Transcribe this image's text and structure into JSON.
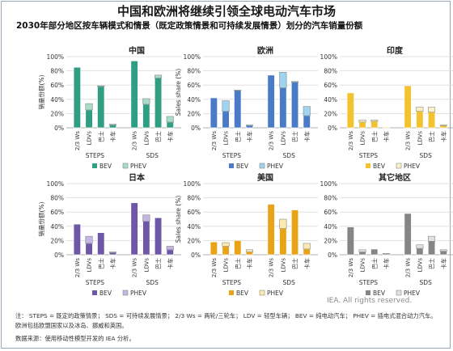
{
  "title": "中国和欧洲将继续引领全球电动汽车市场",
  "subtitle": "2030年部分地区按车辆模式和情景（既定政策情景和可持续发展情景）划分的汽车销量份额",
  "colors": {
    "grid": "#d9d9d9",
    "axis": "#999999"
  },
  "chart_data": [
    {
      "type": "bar",
      "stacked": true,
      "region": "中国",
      "ylabel": "销量份额(%)",
      "ylim": [
        0,
        100
      ],
      "yticks": [
        "0%",
        "20%",
        "40%",
        "60%",
        "80%",
        "100%"
      ],
      "scenarios": [
        "STEPS",
        "SDS"
      ],
      "categories": [
        "2/3 Ws",
        "LDVs",
        "巴士",
        "卡车"
      ],
      "series": [
        {
          "name": "BEV",
          "color": "#2f9e83",
          "steps": [
            85,
            25,
            58,
            4
          ],
          "sds": [
            94,
            33,
            70,
            8
          ]
        },
        {
          "name": "PHEV",
          "color": "#a9dcc9",
          "steps": [
            0,
            9,
            1,
            1
          ],
          "sds": [
            0,
            8,
            4,
            8
          ]
        }
      ],
      "legend": "bottom"
    },
    {
      "type": "bar",
      "stacked": true,
      "region": "欧洲",
      "ylabel": "Sales share (%)",
      "ylim": [
        0,
        100
      ],
      "yticks": [
        "0%",
        "20%",
        "40%",
        "60%",
        "80%",
        "100%"
      ],
      "scenarios": [
        "STEPS",
        "SDS"
      ],
      "categories": [
        "2/3 Ws",
        "LDVs",
        "巴士",
        "卡车"
      ],
      "series": [
        {
          "name": "BEV",
          "color": "#4a7bc6",
          "steps": [
            42,
            23,
            52,
            3
          ],
          "sds": [
            74,
            56,
            64,
            17
          ]
        },
        {
          "name": "PHEV",
          "color": "#9fd3ee",
          "steps": [
            0,
            15,
            1,
            1
          ],
          "sds": [
            0,
            22,
            1,
            13
          ]
        }
      ],
      "legend": "bottom"
    },
    {
      "type": "bar",
      "stacked": true,
      "region": "印度",
      "ylabel": "",
      "ylim": [
        0,
        100
      ],
      "yticks": [
        "0%",
        "20%",
        "40%",
        "60%",
        "80%",
        "100%"
      ],
      "scenarios": [
        "STEPS",
        "SDS"
      ],
      "categories": [
        "2/3 Ws",
        "LDVs",
        "巴士",
        "卡车"
      ],
      "series": [
        {
          "name": "BEV",
          "color": "#f2c230",
          "steps": [
            49,
            8,
            9,
            1
          ],
          "sds": [
            59,
            23,
            22,
            3
          ]
        },
        {
          "name": "PHEV",
          "color": "#fbf1c7",
          "steps": [
            0,
            3,
            2,
            0
          ],
          "sds": [
            0,
            6,
            7,
            1
          ]
        }
      ],
      "legend": "bottom"
    },
    {
      "type": "bar",
      "stacked": true,
      "region": "日本",
      "ylabel": "销量份额(%)",
      "ylim": [
        0,
        100
      ],
      "yticks": [
        "0%",
        "20%",
        "40%",
        "60%",
        "80%",
        "100%"
      ],
      "scenarios": [
        "STEPS",
        "SDS"
      ],
      "categories": [
        "2/3 Ws",
        "LDVs",
        "巴士",
        "卡车"
      ],
      "series": [
        {
          "name": "BEV",
          "color": "#6e57a6",
          "steps": [
            43,
            16,
            31,
            3
          ],
          "sds": [
            73,
            47,
            52,
            7
          ]
        },
        {
          "name": "PHEV",
          "color": "#c3b6e0",
          "steps": [
            0,
            10,
            0,
            1
          ],
          "sds": [
            0,
            9,
            0,
            5
          ]
        }
      ],
      "legend": "bottom"
    },
    {
      "type": "bar",
      "stacked": true,
      "region": "美国",
      "ylabel": "Sales share (%)",
      "ylim": [
        0,
        100
      ],
      "yticks": [
        "0%",
        "20%",
        "40%",
        "60%",
        "80%",
        "100%"
      ],
      "scenarios": [
        "STEPS",
        "SDS"
      ],
      "categories": [
        "2/3 Ws",
        "LDVs",
        "巴士",
        "卡车"
      ],
      "series": [
        {
          "name": "BEV",
          "color": "#e8a317",
          "steps": [
            18,
            12,
            20,
            4
          ],
          "sds": [
            71,
            37,
            63,
            8
          ]
        },
        {
          "name": "PHEV",
          "color": "#fbe9b0",
          "steps": [
            0,
            5,
            0,
            3
          ],
          "sds": [
            0,
            13,
            0,
            8
          ]
        }
      ],
      "legend": "bottom"
    },
    {
      "type": "bar",
      "stacked": true,
      "region": "其它地区",
      "ylabel": "",
      "ylim": [
        0,
        100
      ],
      "yticks": [
        "0%",
        "20%",
        "40%",
        "60%",
        "80%",
        "100%"
      ],
      "scenarios": [
        "STEPS",
        "SDS"
      ],
      "categories": [
        "2/3 Ws",
        "LDVs",
        "巴士",
        "卡车"
      ],
      "series": [
        {
          "name": "BEV",
          "color": "#858585",
          "steps": [
            39,
            4,
            8,
            1
          ],
          "sds": [
            58,
            9,
            19,
            5
          ]
        },
        {
          "name": "PHEV",
          "color": "#e0e0e0",
          "steps": [
            0,
            3,
            0,
            1
          ],
          "sds": [
            0,
            5,
            7,
            2
          ]
        }
      ],
      "legend": "bottom"
    }
  ],
  "watermark": "IEA. All rights reserved.",
  "notes": {
    "line1": "注：  STEPS = 既定的政策情景；  SDS = 可持续发展情景；  2/3 Ws = 两轮/三轮车；  LDV = 轻型车辆；  BEV = 纯电动汽车；  PHEV = 插电式混合动力汽车。",
    "line2": "欧洲包括欧盟国家以及冰岛、挪威和英国。",
    "line3": "数据来源：使用移动性模型开发的 IEA 分析。"
  }
}
